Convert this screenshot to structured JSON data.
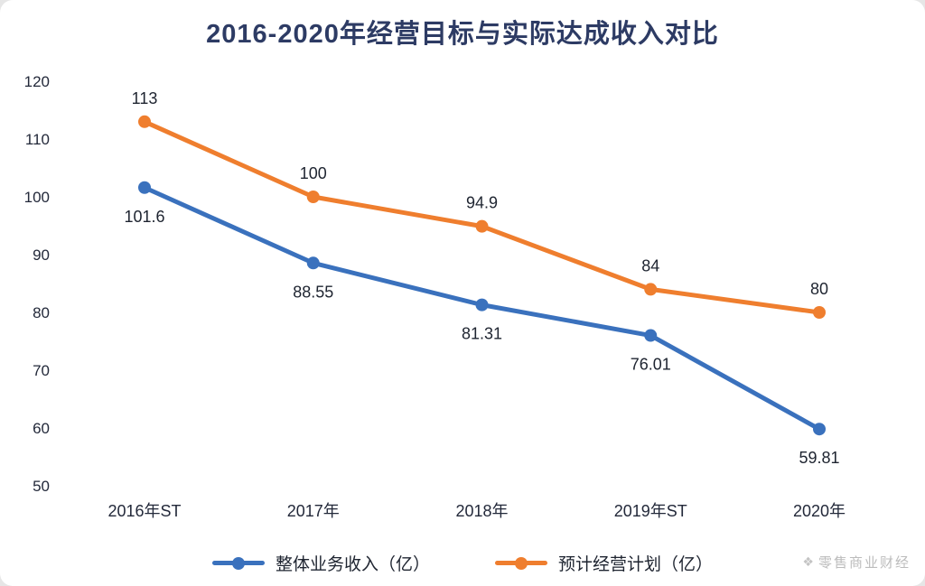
{
  "chart": {
    "title": "2016-2020年经营目标与实际达成收入对比",
    "watermark": "零售商业财经"
  },
  "chart_data": {
    "type": "line",
    "categories": [
      "2016年ST",
      "2017年",
      "2018年",
      "2019年ST",
      "2020年"
    ],
    "series": [
      {
        "name": "整体业务收入（亿）",
        "color": "#3a71bd",
        "values": [
          101.6,
          88.55,
          81.31,
          76.01,
          59.81
        ],
        "labels": [
          "101.6",
          "88.55",
          "81.31",
          "76.01",
          "59.81"
        ],
        "label_position": "below"
      },
      {
        "name": "预计经营计划（亿）",
        "color": "#ef7e2e",
        "values": [
          113,
          100,
          94.9,
          84,
          80
        ],
        "labels": [
          "113",
          "100",
          "94.9",
          "84",
          "80"
        ],
        "label_position": "above"
      }
    ],
    "ylim": [
      50,
      120
    ],
    "yticks": [
      50,
      60,
      70,
      80,
      90,
      100,
      110,
      120
    ],
    "grid": false,
    "legend_position": "bottom"
  }
}
